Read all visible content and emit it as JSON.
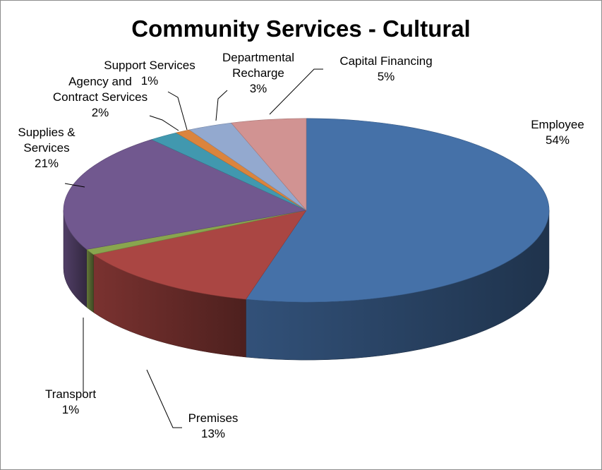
{
  "chart_data": {
    "type": "pie",
    "title": "Community Services - Cultural",
    "categories": [
      "Employee",
      "Premises",
      "Transport",
      "Supplies & Services",
      "Agency and Contract Services",
      "Support Services",
      "Departmental Recharge",
      "Capital Financing"
    ],
    "values": [
      54,
      13,
      1,
      21,
      2,
      1,
      3,
      5
    ],
    "value_labels": [
      "54%",
      "13%",
      "1%",
      "21%",
      "2%",
      "1%",
      "3%",
      "5%"
    ],
    "colors": [
      "#4571a8",
      "#aa4643",
      "#89a54e",
      "#71588f",
      "#4198af",
      "#db843d",
      "#93a9cf",
      "#d19392"
    ],
    "legend": "none",
    "style": "3d",
    "data_labels": [
      {
        "lines": [
          "Employee"
        ],
        "pct": "54%"
      },
      {
        "lines": [
          "Premises"
        ],
        "pct": "13%"
      },
      {
        "lines": [
          "Transport"
        ],
        "pct": "1%"
      },
      {
        "lines": [
          "Supplies &",
          "Services"
        ],
        "pct": "21%"
      },
      {
        "lines": [
          "Agency and",
          "Contract Services"
        ],
        "pct": "2%"
      },
      {
        "lines": [
          "Support Services"
        ],
        "pct": "1%"
      },
      {
        "lines": [
          "Departmental",
          "Recharge"
        ],
        "pct": "3%"
      },
      {
        "lines": [
          "Capital Financing"
        ],
        "pct": "5%"
      }
    ]
  }
}
